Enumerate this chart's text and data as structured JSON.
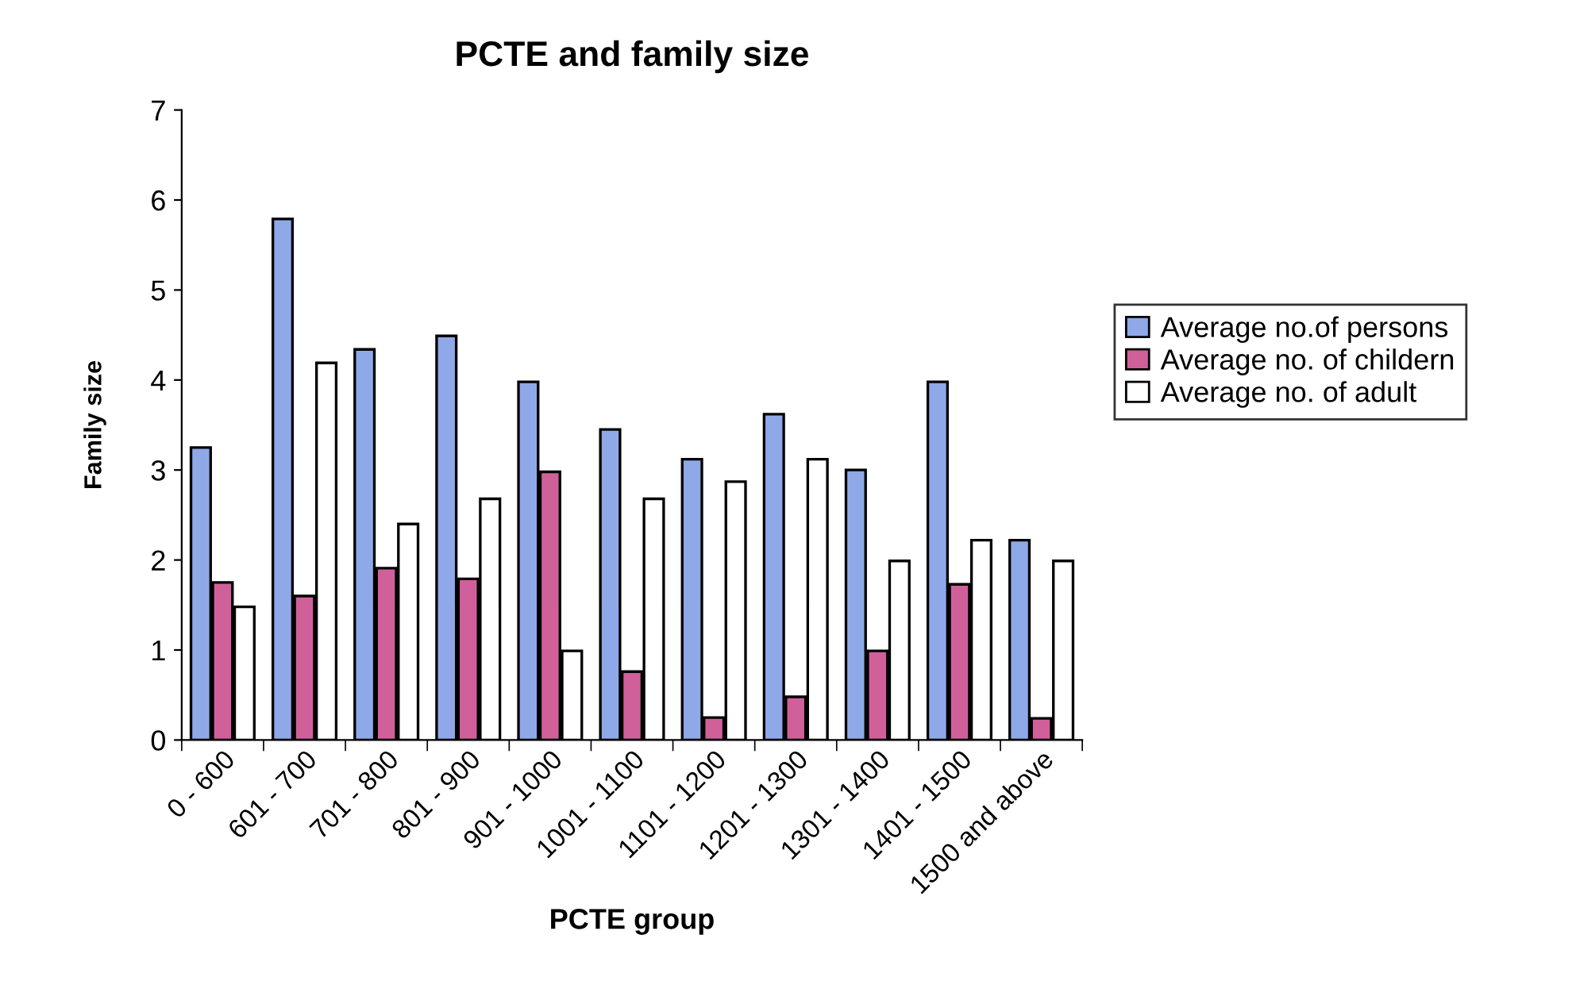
{
  "chart_data": {
    "type": "bar",
    "title": "PCTE and family size",
    "xlabel": "PCTE group",
    "ylabel": "Family size",
    "categories": [
      "0 - 600",
      "601 - 700",
      "701 - 800",
      "801 - 900",
      "901 - 1000",
      "1001 - 1100",
      "1101 - 1200",
      "1201 - 1300",
      "1301 - 1400",
      "1401 - 1500",
      "1500 and above"
    ],
    "series": [
      {
        "name": "Average no.of persons",
        "color": "#8fa8e8",
        "values": [
          3.25,
          5.79,
          4.34,
          4.49,
          3.98,
          3.45,
          3.12,
          3.62,
          3.0,
          3.98,
          2.22
        ]
      },
      {
        "name": "Average no. of childern",
        "color": "#d0609a",
        "values": [
          1.75,
          1.6,
          1.91,
          1.79,
          2.98,
          0.76,
          0.25,
          0.48,
          0.99,
          1.73,
          0.24
        ]
      },
      {
        "name": "Average no. of adult",
        "color": "#ffffff",
        "values": [
          1.48,
          4.19,
          2.4,
          2.68,
          0.99,
          2.68,
          2.87,
          3.12,
          1.99,
          2.22,
          1.99
        ]
      }
    ],
    "ylim": [
      0,
      7
    ],
    "yticks": [
      0,
      1,
      2,
      3,
      4,
      5,
      6,
      7
    ],
    "grid": false,
    "legend": "right"
  }
}
